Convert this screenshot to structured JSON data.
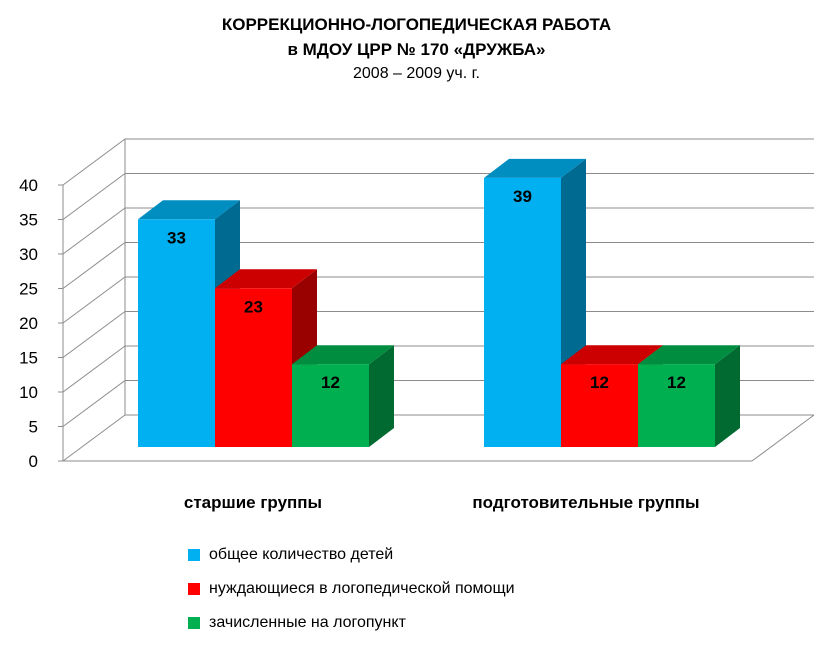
{
  "chart_data": {
    "type": "bar",
    "title_line1": "КОРРЕКЦИОННО-ЛОГОПЕДИЧЕСКАЯ РАБОТА",
    "title_line2": "в МДОУ ЦРР № 170 «ДРУЖБА»",
    "subtitle": "2008 – 2009 уч. г.",
    "categories": [
      "старшие группы",
      "подготовительные группы"
    ],
    "series": [
      {
        "name": "общее количество детей",
        "values": [
          33,
          39
        ],
        "color": "#00b0f0"
      },
      {
        "name": "нуждающиеся в логопедической помощи",
        "values": [
          23,
          12
        ],
        "color": "#ff0000"
      },
      {
        "name": "зачисленные на логопункт",
        "values": [
          12,
          12
        ],
        "color": "#00b050"
      }
    ],
    "ylim": [
      0,
      40
    ],
    "yticks": [
      0,
      5,
      10,
      15,
      20,
      25,
      30,
      35,
      40
    ],
    "grid": true,
    "legend": "bottom",
    "three_d": true
  }
}
